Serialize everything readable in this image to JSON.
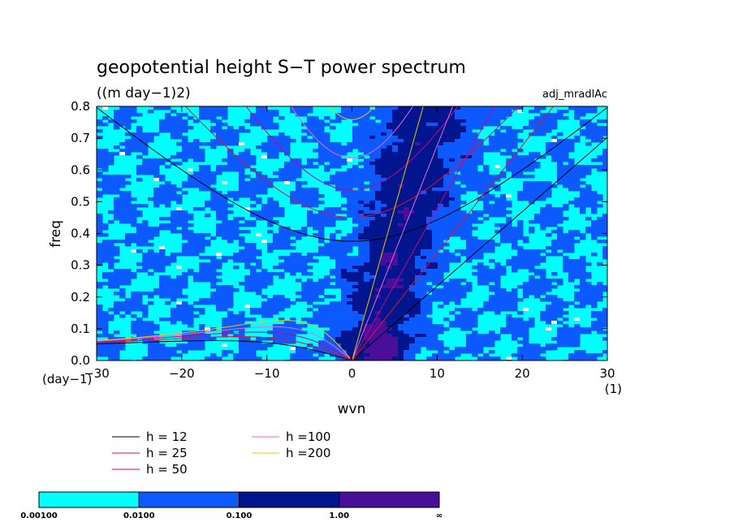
{
  "chart_data": {
    "type": "contour",
    "title": "geopotential height S−T power spectrum",
    "subtitle": "((m day−1)2)",
    "label_right": "adj_mradlAc",
    "xlabel": "wvn",
    "ylabel": "freq",
    "x_unit": "(1)",
    "y_unit": "(day−1)",
    "xlim": [
      -30,
      30
    ],
    "ylim": [
      0,
      0.8
    ],
    "x_ticks": [
      -30,
      -20,
      -10,
      0,
      10,
      20,
      30
    ],
    "y_ticks": [
      0.0,
      0.1,
      0.2,
      0.3,
      0.4,
      0.5,
      0.6,
      0.7,
      0.8
    ],
    "x_tick_labels": [
      "−30",
      "−20",
      "−10",
      "0",
      "10",
      "20",
      "30"
    ],
    "y_tick_labels": [
      "0.0",
      "0.1",
      "0.2",
      "0.3",
      "0.4",
      "0.5",
      "0.6",
      "0.7",
      "0.8"
    ],
    "dispersion_curves": [
      {
        "label": "h = 12",
        "color": "#000000"
      },
      {
        "label": "h = 25",
        "color": "#e8102a"
      },
      {
        "label": "h = 50",
        "color": "#cc0088"
      },
      {
        "label": "h =100",
        "color": "#ee66dd"
      },
      {
        "label": "h =200",
        "color": "#e8c800"
      }
    ],
    "colorbar": {
      "levels": [
        "0.00100",
        "0.0100",
        "0.100",
        "1.00",
        "∞"
      ],
      "colors": [
        "#00ffff",
        "#0b59ff",
        "#00158e",
        "#4a0f9a"
      ]
    }
  }
}
